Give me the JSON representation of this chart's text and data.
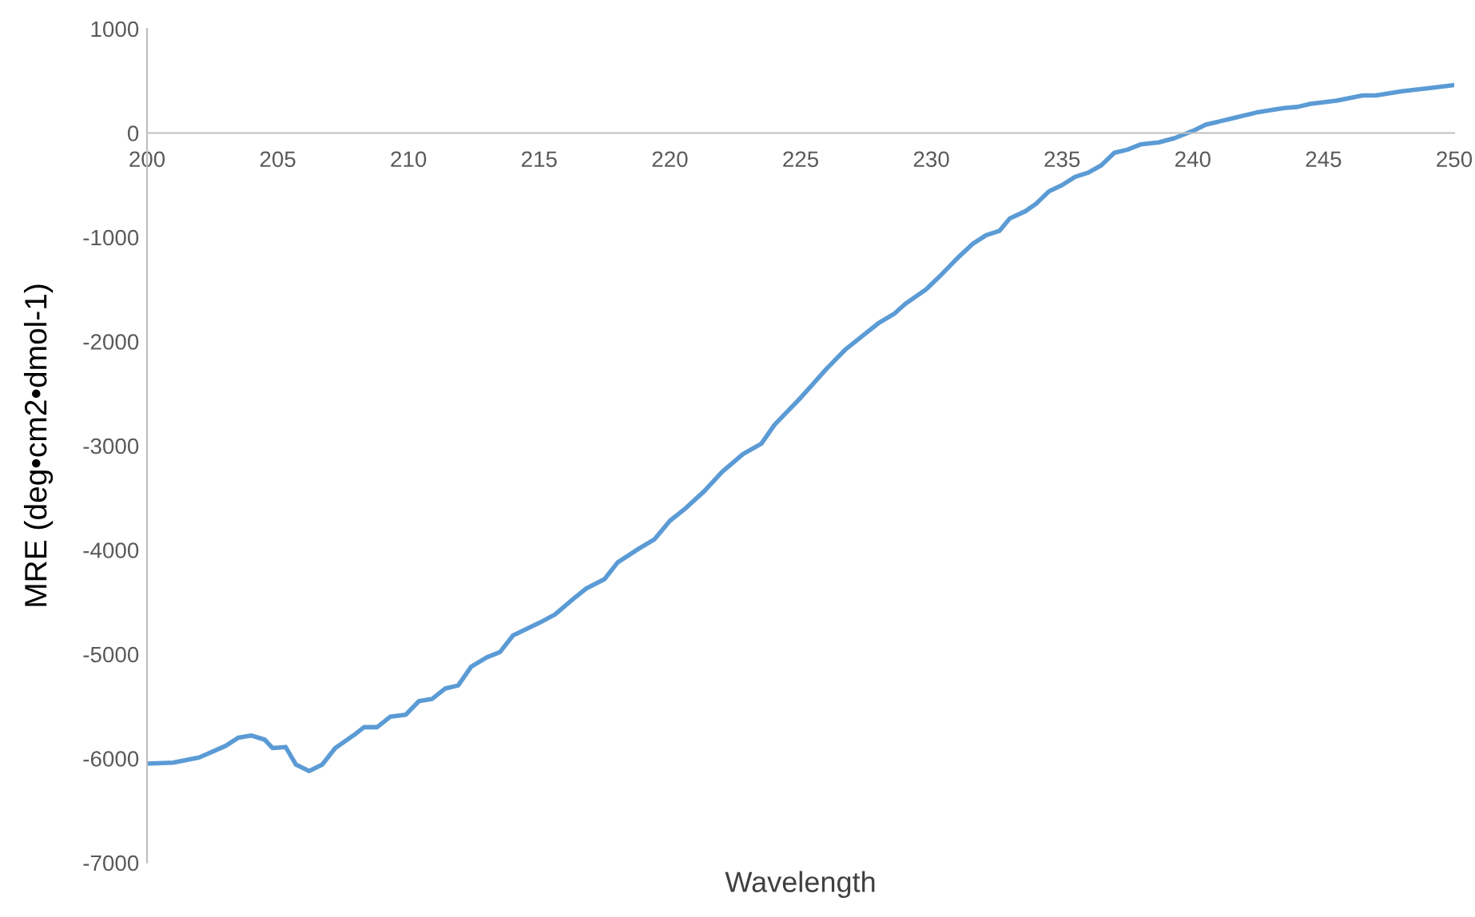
{
  "chart_data": {
    "type": "line",
    "xlabel": "Wavelength",
    "ylabel": "MRE (deg•cm2•dmol-1)",
    "x": [
      200,
      201,
      202,
      203,
      203.5,
      204,
      204.5,
      204.8,
      205.3,
      205.7,
      206.2,
      206.7,
      207.2,
      208,
      208.3,
      208.8,
      209.3,
      209.9,
      210.4,
      210.9,
      211.4,
      211.9,
      212.4,
      213,
      213.5,
      214,
      215,
      215.6,
      216.3,
      216.8,
      217.5,
      218,
      218.8,
      219.4,
      220,
      220.6,
      221.3,
      222,
      222.8,
      223.5,
      224,
      225,
      226,
      226.7,
      227.4,
      228,
      228.6,
      229,
      229.8,
      230.3,
      231,
      231.6,
      232.1,
      232.6,
      233,
      233.6,
      234,
      234.5,
      235,
      235.5,
      236,
      236.5,
      237,
      237.5,
      238,
      238.7,
      239.3,
      240,
      240.5,
      241.5,
      242.5,
      243,
      243.5,
      244,
      244.5,
      245.5,
      246.5,
      247,
      248,
      249,
      250
    ],
    "series": [
      {
        "color": "#5b9bd5",
        "values": [
          -6050,
          -6040,
          -5990,
          -5880,
          -5800,
          -5780,
          -5820,
          -5900,
          -5890,
          -6060,
          -6120,
          -6060,
          -5900,
          -5760,
          -5700,
          -5700,
          -5600,
          -5580,
          -5450,
          -5430,
          -5330,
          -5300,
          -5120,
          -5030,
          -4980,
          -4820,
          -4700,
          -4620,
          -4470,
          -4370,
          -4280,
          -4120,
          -3990,
          -3900,
          -3720,
          -3600,
          -3440,
          -3250,
          -3080,
          -2980,
          -2800,
          -2540,
          -2260,
          -2080,
          -1940,
          -1820,
          -1730,
          -1640,
          -1500,
          -1380,
          -1200,
          -1060,
          -980,
          -940,
          -820,
          -750,
          -680,
          -560,
          -500,
          -420,
          -380,
          -310,
          -190,
          -160,
          -110,
          -90,
          -50,
          20,
          80,
          140,
          200,
          220,
          240,
          250,
          280,
          310,
          360,
          360,
          400,
          430,
          460
        ]
      }
    ],
    "xlim": [
      200,
      250
    ],
    "xticks": [
      200,
      205,
      210,
      215,
      220,
      225,
      230,
      235,
      240,
      245,
      250
    ],
    "ylim": [
      -7000,
      1000
    ],
    "yticks": [
      -7000,
      -6000,
      -5000,
      -4000,
      -3000,
      -2000,
      -1000,
      0,
      1000
    ],
    "grid": false,
    "legend": false,
    "marker": "none",
    "line_style": "solid"
  }
}
